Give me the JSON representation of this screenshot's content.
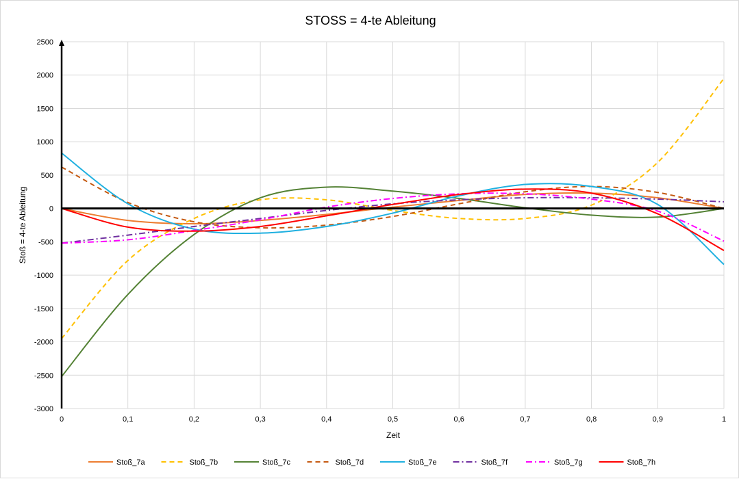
{
  "chart_data": {
    "type": "line",
    "title": "STOSS = 4-te Ableitung",
    "xlabel": "Zeit",
    "ylabel": "Stoß = 4-te Ableitung",
    "xlim": [
      0,
      1
    ],
    "ylim": [
      -3000,
      2500
    ],
    "x_ticks": [
      0,
      0.1,
      0.2,
      0.3,
      0.4,
      0.5,
      0.6,
      0.7,
      0.8,
      0.9,
      1
    ],
    "x_tick_labels": [
      "0",
      "0,1",
      "0,2",
      "0,3",
      "0,4",
      "0,5",
      "0,6",
      "0,7",
      "0,8",
      "0,9",
      "1"
    ],
    "y_ticks": [
      2500,
      2000,
      1500,
      1000,
      500,
      0,
      -500,
      -1000,
      -1500,
      -2000,
      -2500,
      -3000
    ],
    "y_tick_labels": [
      "2500",
      "2000",
      "1500",
      "1000",
      "500",
      "0",
      "-500",
      "-1000",
      "-1500",
      "-2000",
      "-2500",
      "-3000"
    ],
    "grid": true,
    "legend_position": "bottom",
    "x": [
      0,
      0.1,
      0.2,
      0.3,
      0.4,
      0.5,
      0.6,
      0.7,
      0.8,
      0.9,
      1
    ],
    "series": [
      {
        "name": "Stoß_7a",
        "color": "#ED7D31",
        "dash": "solid",
        "values": [
          0,
          -180,
          -230,
          -180,
          -90,
          20,
          120,
          210,
          230,
          160,
          0
        ]
      },
      {
        "name": "Stoß_7b",
        "color": "#FFC000",
        "dash": "dashed",
        "values": [
          -1950,
          -780,
          -150,
          130,
          130,
          -30,
          -150,
          -150,
          50,
          690,
          1950
        ]
      },
      {
        "name": "Stoß_7c",
        "color": "#548235",
        "dash": "solid",
        "values": [
          -2520,
          -1290,
          -390,
          160,
          320,
          260,
          150,
          10,
          -100,
          -130,
          0
        ]
      },
      {
        "name": "Stoß_7d",
        "color": "#C55A11",
        "dash": "dashed",
        "values": [
          620,
          90,
          -200,
          -290,
          -250,
          -120,
          70,
          250,
          330,
          240,
          0
        ]
      },
      {
        "name": "Stoß_7e",
        "color": "#1FB0E0",
        "dash": "solid",
        "values": [
          830,
          70,
          -310,
          -370,
          -270,
          -70,
          190,
          360,
          330,
          60,
          -840
        ]
      },
      {
        "name": "Stoß_7f",
        "color": "#7030A0",
        "dash": "dashdot",
        "values": [
          -520,
          -400,
          -270,
          -150,
          -30,
          70,
          130,
          160,
          160,
          140,
          100
        ]
      },
      {
        "name": "Stoß_7g",
        "color": "#FF00FF",
        "dash": "dashdot",
        "values": [
          -520,
          -470,
          -330,
          -170,
          20,
          150,
          220,
          220,
          140,
          -40,
          -490
        ]
      },
      {
        "name": "Stoß_7h",
        "color": "#FF0000",
        "dash": "solid",
        "values": [
          0,
          -280,
          -340,
          -270,
          -110,
          60,
          210,
          290,
          230,
          -80,
          -630
        ]
      }
    ]
  }
}
